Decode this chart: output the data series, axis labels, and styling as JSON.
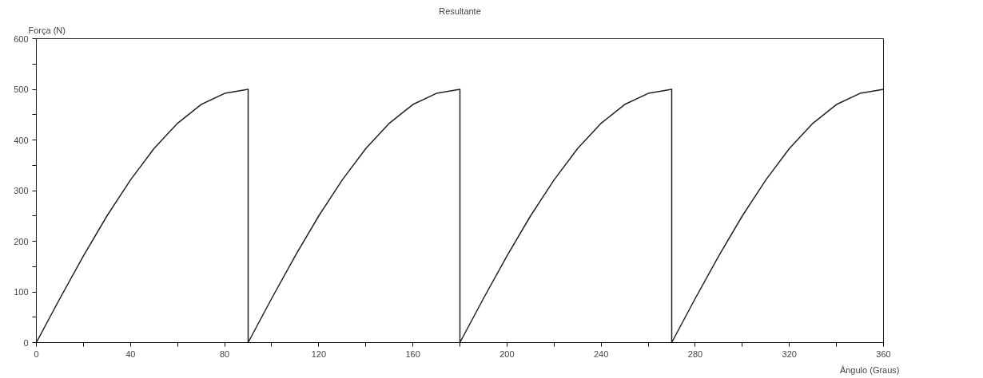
{
  "chart_data": {
    "type": "line",
    "title": "Resultante",
    "xlabel": "Ângulo (Graus)",
    "ylabel": "Força (N)",
    "x": [
      0,
      10,
      20,
      30,
      40,
      50,
      60,
      70,
      80,
      90,
      90,
      100,
      110,
      120,
      130,
      140,
      150,
      160,
      170,
      180,
      180,
      190,
      200,
      210,
      220,
      230,
      240,
      250,
      260,
      270,
      270,
      280,
      290,
      300,
      310,
      320,
      330,
      340,
      350,
      360
    ],
    "series": [
      {
        "color": "#222222",
        "values": [
          0,
          87,
          171,
          250,
          321,
          383,
          433,
          470,
          492,
          500,
          0,
          87,
          171,
          250,
          321,
          383,
          433,
          470,
          492,
          500,
          0,
          87,
          171,
          250,
          321,
          383,
          433,
          470,
          492,
          500,
          0,
          87,
          171,
          250,
          321,
          383,
          433,
          470,
          492,
          500
        ]
      }
    ],
    "xlim": [
      0,
      360
    ],
    "ylim": [
      0,
      600
    ],
    "xticks": [
      0,
      {
        "value": 20,
        "label": null
      },
      40,
      {
        "value": 60,
        "label": null
      },
      80,
      {
        "value": 100,
        "label": null
      },
      120,
      {
        "value": 140,
        "label": null
      },
      160,
      {
        "value": 180,
        "label": null
      },
      200,
      {
        "value": 220,
        "label": null
      },
      240,
      {
        "value": 260,
        "label": null
      },
      280,
      {
        "value": 300,
        "label": null
      },
      320,
      {
        "value": 340,
        "label": null
      },
      360
    ],
    "yticks": [
      0,
      {
        "value": 50,
        "label": null
      },
      100,
      {
        "value": 150,
        "label": null
      },
      200,
      {
        "value": 250,
        "label": null
      },
      300,
      {
        "value": 350,
        "label": null
      },
      400,
      {
        "value": 450,
        "label": null
      },
      500,
      {
        "value": 550,
        "label": null
      },
      600
    ],
    "grid": false,
    "marker": "none",
    "line_style": "solid"
  }
}
